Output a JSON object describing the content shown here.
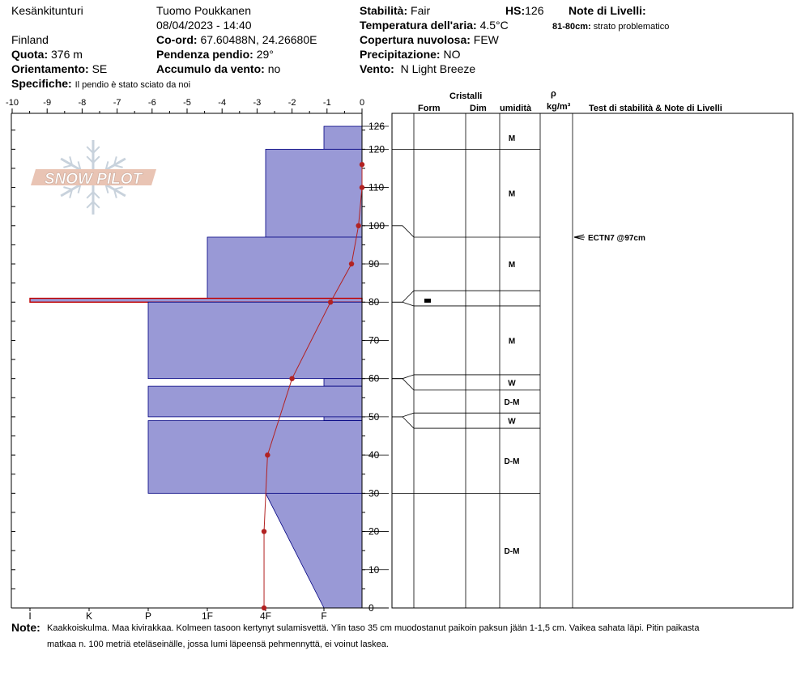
{
  "header": {
    "location": "Kesänkitunturi",
    "country": "Finland",
    "observer": "Tuomo Poukkanen",
    "datetime": "08/04/2023 - 14:40",
    "elevation_label": "Quota:",
    "elevation": "376 m",
    "aspect_label": "Orientamento:",
    "aspect": "SE",
    "coords_label": "Co-ord:",
    "coords": "67.60488N, 24.26680E",
    "slope_label": "Pendenza pendio:",
    "slope": "29°",
    "wind_loading_label": "Accumulo da vento:",
    "wind_loading": "no",
    "specifics_label": "Specifiche:",
    "specifics": "Il pendio è stato sciato da noi",
    "stability_label": "Stabilità:",
    "stability": "Fair",
    "hs_label": "HS:",
    "hs": "126",
    "air_temp_label": "Temperatura dell'aria:",
    "air_temp": "4.5°C",
    "cloud_label": "Copertura nuvolosa:",
    "cloud": "FEW",
    "precip_label": "Precipitazione:",
    "precip": "NO",
    "wind_label": "Vento:",
    "wind": "N Light Breeze",
    "layer_notes_label": "Note di Livelli:",
    "layer_note_range": "81-80cm:",
    "layer_note_text": "strato problematico"
  },
  "columns": {
    "cristalli": "Cristalli",
    "form": "Form",
    "dim": "Dim",
    "umidita": "umidità",
    "rho": "ρ",
    "rho_unit": "kg/m³",
    "stability": "Test di stabilità & Note di Livelli"
  },
  "notes_label": "Note:",
  "notes_line1": "Kaakkoiskulma. Maa kivirakkaa. Kolmeen tasoon kertynyt sulamisvettä. Ylin taso 35 cm muodostanut paikoin paksun jään 1-1,5 cm. Vaikea sahata läpi. Pitin paikasta",
  "notes_line2": "matkaa n. 100 metriä eteläseinälle, jossa lumi läpeensä pehmennyttä, ei voinut laskea.",
  "logo_text": "SNOW PILOT",
  "colors": {
    "hardness_fill": "#9999d6",
    "hardness_stroke": "#000080",
    "temperature": "#b22222",
    "problem_layer": "#c00000"
  },
  "chart_data": {
    "type": "area",
    "hs_cm": 126,
    "temp_axis": {
      "label": "",
      "min": -10,
      "max": 0,
      "ticks": [
        "-10",
        "-9",
        "-8",
        "-7",
        "-6",
        "-5",
        "-4",
        "-3",
        "-2",
        "-1",
        "0"
      ]
    },
    "hardness_axis": {
      "labels": [
        "I",
        "K",
        "P",
        "1F",
        "4F",
        "F"
      ]
    },
    "height_axis": {
      "ticks": [
        0,
        10,
        20,
        30,
        40,
        50,
        60,
        70,
        80,
        90,
        100,
        110,
        120,
        126
      ]
    },
    "hardness_profile": [
      {
        "top": 126,
        "bottom": 120,
        "hardness": "F"
      },
      {
        "top": 120,
        "bottom": 97,
        "hardness": "4F"
      },
      {
        "top": 97,
        "bottom": 81,
        "hardness": "1F"
      },
      {
        "top": 81,
        "bottom": 80,
        "hardness": "I"
      },
      {
        "top": 80,
        "bottom": 60,
        "hardness": "P"
      },
      {
        "top": 60,
        "bottom": 58,
        "hardness": "F"
      },
      {
        "top": 58,
        "bottom": 50,
        "hardness": "P"
      },
      {
        "top": 50,
        "bottom": 49,
        "hardness": "F"
      },
      {
        "top": 49,
        "bottom": 30,
        "hardness": "P"
      },
      {
        "top": 30,
        "bottom": 0,
        "hardness_top": "4F",
        "hardness_bottom": "F"
      }
    ],
    "temperature_profile": {
      "height_cm": [
        116,
        110,
        100,
        90,
        80,
        60,
        40,
        20,
        0
      ],
      "temp_c": [
        0.0,
        0.0,
        -0.1,
        -0.3,
        -0.9,
        -2.0,
        -2.7,
        -2.8,
        -2.8
      ]
    },
    "grain_layers": [
      {
        "top": 126,
        "bottom": 120,
        "wetness": "M"
      },
      {
        "top": 120,
        "bottom": 97,
        "wetness": "M"
      },
      {
        "top": 97,
        "bottom": 83,
        "wetness": "M"
      },
      {
        "top": 83,
        "bottom": 79,
        "wetness": ""
      },
      {
        "top": 79,
        "bottom": 61,
        "wetness": "M"
      },
      {
        "top": 61,
        "bottom": 57,
        "wetness": "W"
      },
      {
        "top": 57,
        "bottom": 51,
        "wetness": "D-M"
      },
      {
        "top": 51,
        "bottom": 47,
        "wetness": "W"
      },
      {
        "top": 47,
        "bottom": 30,
        "wetness": "D-M"
      },
      {
        "top": 30,
        "bottom": 0,
        "wetness": "D-M"
      }
    ],
    "stability_tests": [
      {
        "height_cm": 97,
        "label": "ECTN7 @97cm"
      }
    ]
  }
}
